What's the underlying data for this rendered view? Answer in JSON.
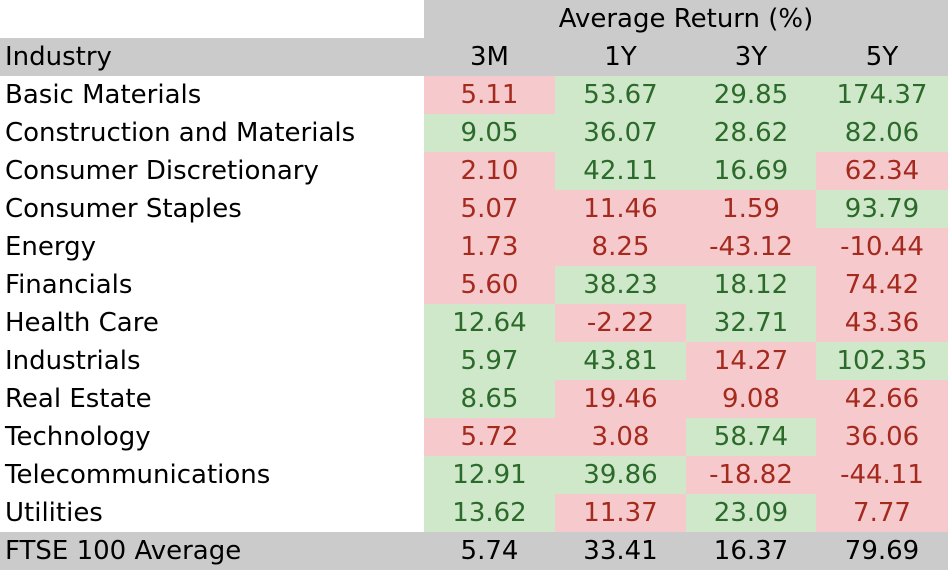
{
  "table": {
    "header_group": "Average Return (%)",
    "columns": [
      "Industry",
      "3M",
      "1Y",
      "3Y",
      "5Y"
    ],
    "rows": [
      {
        "industry": "Basic Materials",
        "values": [
          "5.11",
          "53.67",
          "29.85",
          "174.37"
        ],
        "colors": [
          "neg",
          "pos",
          "pos",
          "pos"
        ]
      },
      {
        "industry": "Construction and Materials",
        "values": [
          "9.05",
          "36.07",
          "28.62",
          "82.06"
        ],
        "colors": [
          "pos",
          "pos",
          "pos",
          "pos"
        ]
      },
      {
        "industry": "Consumer Discretionary",
        "values": [
          "2.10",
          "42.11",
          "16.69",
          "62.34"
        ],
        "colors": [
          "neg",
          "pos",
          "pos",
          "neg"
        ]
      },
      {
        "industry": "Consumer Staples",
        "values": [
          "5.07",
          "11.46",
          "1.59",
          "93.79"
        ],
        "colors": [
          "neg",
          "neg",
          "neg",
          "pos"
        ]
      },
      {
        "industry": "Energy",
        "values": [
          "1.73",
          "8.25",
          "-43.12",
          "-10.44"
        ],
        "colors": [
          "neg",
          "neg",
          "neg",
          "neg"
        ]
      },
      {
        "industry": "Financials",
        "values": [
          "5.60",
          "38.23",
          "18.12",
          "74.42"
        ],
        "colors": [
          "neg",
          "pos",
          "pos",
          "neg"
        ]
      },
      {
        "industry": "Health Care",
        "values": [
          "12.64",
          "-2.22",
          "32.71",
          "43.36"
        ],
        "colors": [
          "pos",
          "neg",
          "pos",
          "neg"
        ]
      },
      {
        "industry": "Industrials",
        "values": [
          "5.97",
          "43.81",
          "14.27",
          "102.35"
        ],
        "colors": [
          "pos",
          "pos",
          "neg",
          "pos"
        ]
      },
      {
        "industry": "Real Estate",
        "values": [
          "8.65",
          "19.46",
          "9.08",
          "42.66"
        ],
        "colors": [
          "pos",
          "neg",
          "neg",
          "neg"
        ]
      },
      {
        "industry": "Technology",
        "values": [
          "5.72",
          "3.08",
          "58.74",
          "36.06"
        ],
        "colors": [
          "neg",
          "neg",
          "pos",
          "neg"
        ]
      },
      {
        "industry": "Telecommunications",
        "values": [
          "12.91",
          "39.86",
          "-18.82",
          "-44.11"
        ],
        "colors": [
          "pos",
          "pos",
          "neg",
          "neg"
        ]
      },
      {
        "industry": "Utilities",
        "values": [
          "13.62",
          "11.37",
          "23.09",
          "7.77"
        ],
        "colors": [
          "pos",
          "neg",
          "pos",
          "neg"
        ]
      }
    ],
    "footer": {
      "label": "FTSE 100 Average",
      "values": [
        "5.74",
        "33.41",
        "16.37",
        "79.69"
      ]
    }
  },
  "colors": {
    "header_bg": "#cbcbcb",
    "positive_bg": "#cfe8ca",
    "positive_text": "#2b6a2b",
    "negative_bg": "#f6c9cd",
    "negative_text": "#a42a1e"
  },
  "chart_data": {
    "type": "table",
    "title": "Average Return (%)",
    "columns": [
      "Industry",
      "3M",
      "1Y",
      "3Y",
      "5Y"
    ],
    "rows": [
      [
        "Basic Materials",
        5.11,
        53.67,
        29.85,
        174.37
      ],
      [
        "Construction and Materials",
        9.05,
        36.07,
        28.62,
        82.06
      ],
      [
        "Consumer Discretionary",
        2.1,
        42.11,
        16.69,
        62.34
      ],
      [
        "Consumer Staples",
        5.07,
        11.46,
        1.59,
        93.79
      ],
      [
        "Energy",
        1.73,
        8.25,
        -43.12,
        -10.44
      ],
      [
        "Financials",
        5.6,
        38.23,
        18.12,
        74.42
      ],
      [
        "Health Care",
        12.64,
        -2.22,
        32.71,
        43.36
      ],
      [
        "Industrials",
        5.97,
        43.81,
        14.27,
        102.35
      ],
      [
        "Real Estate",
        8.65,
        19.46,
        9.08,
        42.66
      ],
      [
        "Technology",
        5.72,
        3.08,
        58.74,
        36.06
      ],
      [
        "Telecommunications",
        12.91,
        39.86,
        -18.82,
        -44.11
      ],
      [
        "Utilities",
        13.62,
        11.37,
        23.09,
        7.77
      ]
    ],
    "footer": [
      "FTSE 100 Average",
      5.74,
      33.41,
      16.37,
      79.69
    ],
    "cell_color_rule": "green = above FTSE 100 Average for that period, red = below",
    "cell_colors": [
      [
        "red",
        "green",
        "green",
        "green"
      ],
      [
        "green",
        "green",
        "green",
        "green"
      ],
      [
        "red",
        "green",
        "green",
        "red"
      ],
      [
        "red",
        "red",
        "red",
        "green"
      ],
      [
        "red",
        "red",
        "red",
        "red"
      ],
      [
        "red",
        "green",
        "green",
        "red"
      ],
      [
        "green",
        "red",
        "green",
        "red"
      ],
      [
        "green",
        "green",
        "red",
        "green"
      ],
      [
        "green",
        "red",
        "red",
        "red"
      ],
      [
        "red",
        "red",
        "green",
        "red"
      ],
      [
        "green",
        "green",
        "red",
        "red"
      ],
      [
        "green",
        "red",
        "green",
        "red"
      ]
    ]
  }
}
